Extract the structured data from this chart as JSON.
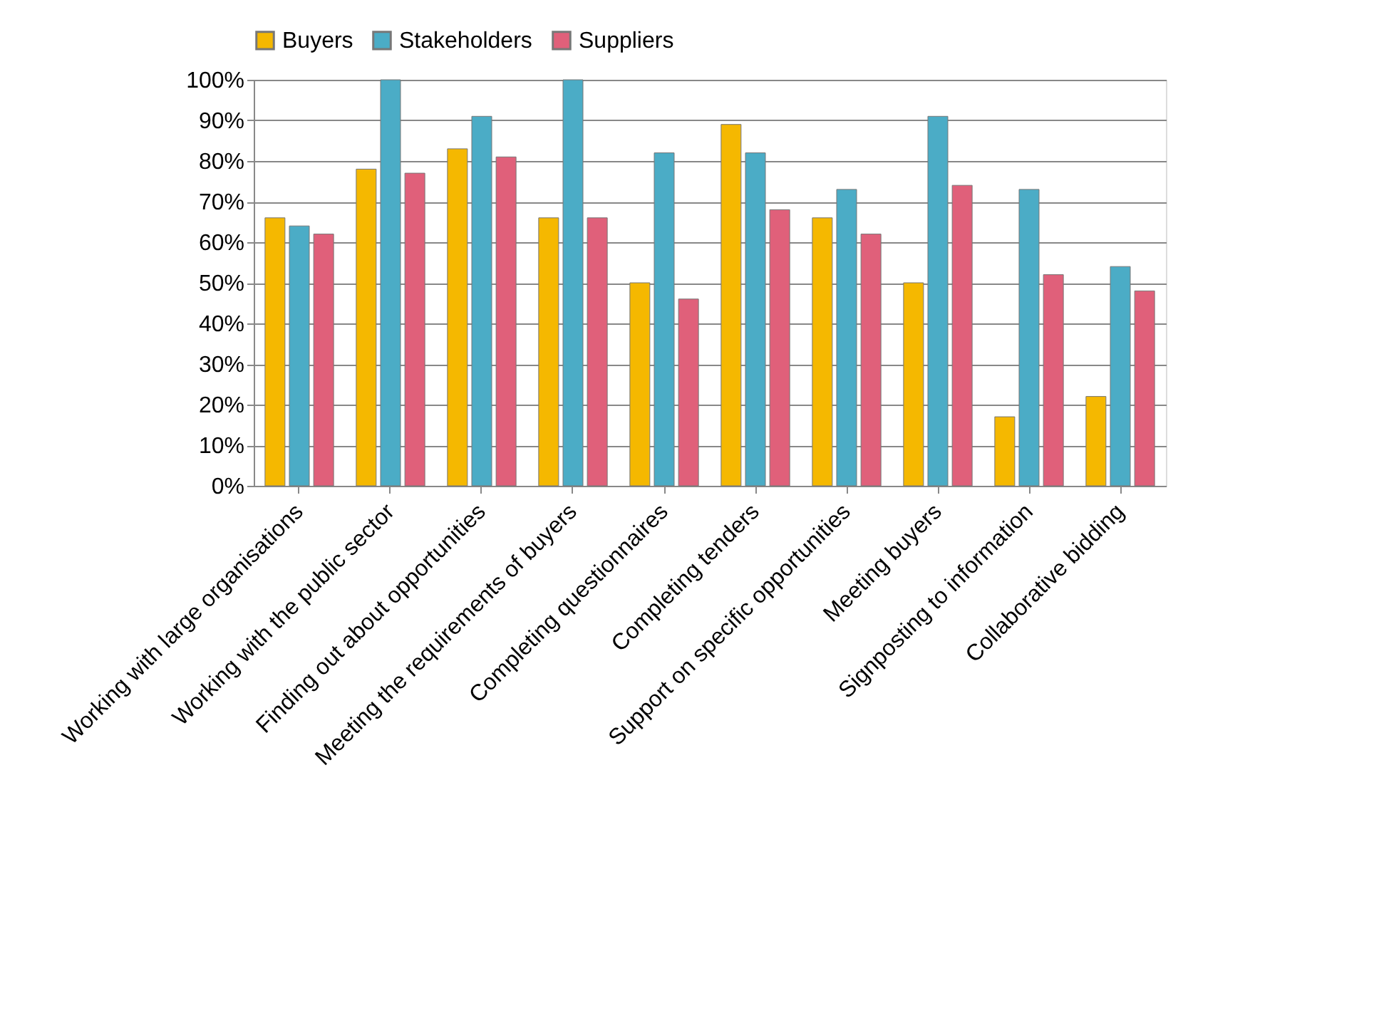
{
  "chart_data": {
    "type": "bar",
    "categories": [
      "Working with large organisations",
      "Working with the public sector",
      "Finding out about opportunities",
      "Meeting the requirements of buyers",
      "Completing questionnaires",
      "Completing tenders",
      "Support on specific opportunities",
      "Meeting buyers",
      "Signposting to information",
      "Collaborative bidding"
    ],
    "series": [
      {
        "name": "Buyers",
        "color": "#f5b800",
        "values": [
          66,
          78,
          83,
          66,
          50,
          89,
          66,
          50,
          17,
          22
        ]
      },
      {
        "name": "Stakeholders",
        "color": "#4bacc6",
        "values": [
          64,
          100,
          91,
          100,
          82,
          82,
          73,
          91,
          73,
          54
        ]
      },
      {
        "name": "Suppliers",
        "color": "#e0607a",
        "values": [
          62,
          77,
          81,
          66,
          46,
          68,
          62,
          74,
          52,
          48
        ]
      }
    ],
    "ylim": [
      0,
      100
    ],
    "yticks": [
      {
        "value": 0,
        "label": "0%"
      },
      {
        "value": 10,
        "label": "10%"
      },
      {
        "value": 20,
        "label": "20%"
      },
      {
        "value": 30,
        "label": "30%"
      },
      {
        "value": 40,
        "label": "40%"
      },
      {
        "value": 50,
        "label": "50%"
      },
      {
        "value": 60,
        "label": "60%"
      },
      {
        "value": 70,
        "label": "70%"
      },
      {
        "value": 80,
        "label": "80%"
      },
      {
        "value": 90,
        "label": "90%"
      },
      {
        "value": 100,
        "label": "100%"
      }
    ],
    "grid": "y",
    "legend": "top"
  }
}
